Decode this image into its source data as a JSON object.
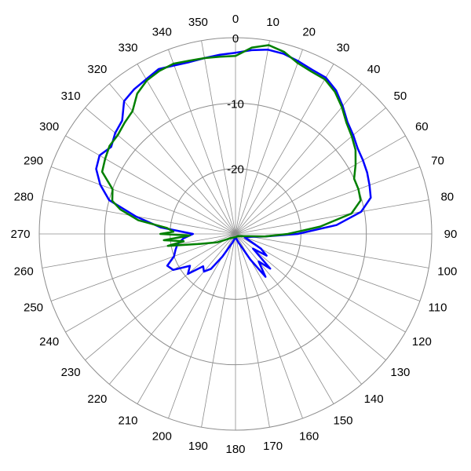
{
  "chart_data": {
    "type": "polar-line",
    "title": "",
    "angle_unit": "degrees",
    "angle_direction": "clockwise",
    "angle_zero": "top",
    "angle_ticks": [
      0,
      10,
      20,
      30,
      40,
      50,
      60,
      70,
      80,
      90,
      100,
      110,
      120,
      130,
      140,
      150,
      160,
      170,
      180,
      190,
      200,
      210,
      220,
      230,
      240,
      250,
      260,
      270,
      280,
      290,
      300,
      310,
      320,
      330,
      340,
      350
    ],
    "radial_range": [
      -30,
      0
    ],
    "radial_ticks": [
      0,
      -10,
      -20
    ],
    "grid": true,
    "legend": "none",
    "series": [
      {
        "color": "#0000ff",
        "points": [
          [
            0,
            -2.3
          ],
          [
            5,
            -1.8
          ],
          [
            10,
            -1.4
          ],
          [
            15,
            -1.5
          ],
          [
            20,
            -1.9
          ],
          [
            25,
            -2.3
          ],
          [
            30,
            -2.4
          ],
          [
            35,
            -3.2
          ],
          [
            40,
            -4.5
          ],
          [
            45,
            -5.8
          ],
          [
            50,
            -6.5
          ],
          [
            55,
            -7.2
          ],
          [
            60,
            -7.5
          ],
          [
            65,
            -7.8
          ],
          [
            70,
            -8.2
          ],
          [
            75,
            -8.6
          ],
          [
            80,
            -10.5
          ],
          [
            85,
            -14.5
          ],
          [
            90,
            -20.5
          ],
          [
            95,
            -25.5
          ],
          [
            100,
            -27.5
          ],
          [
            110,
            -28.5
          ],
          [
            120,
            -25.5
          ],
          [
            125,
            -24.2
          ],
          [
            130,
            -26.5
          ],
          [
            135,
            -22.5
          ],
          [
            140,
            -24.5
          ],
          [
            145,
            -22.0
          ],
          [
            150,
            -25.5
          ],
          [
            160,
            -28.5
          ],
          [
            180,
            -29.5
          ],
          [
            200,
            -28.5
          ],
          [
            210,
            -26.0
          ],
          [
            215,
            -23.5
          ],
          [
            220,
            -22.5
          ],
          [
            225,
            -23.0
          ],
          [
            230,
            -20.5
          ],
          [
            235,
            -21.5
          ],
          [
            240,
            -19.0
          ],
          [
            245,
            -18.5
          ],
          [
            250,
            -20.0
          ],
          [
            255,
            -20.5
          ],
          [
            260,
            -21.0
          ],
          [
            265,
            -22.0
          ],
          [
            270,
            -23.5
          ],
          [
            275,
            -18.5
          ],
          [
            280,
            -14.5
          ],
          [
            285,
            -10.0
          ],
          [
            290,
            -8.0
          ],
          [
            295,
            -6.5
          ],
          [
            300,
            -6.0
          ],
          [
            305,
            -6.8
          ],
          [
            310,
            -6.0
          ],
          [
            315,
            -5.5
          ],
          [
            320,
            -3.5
          ],
          [
            325,
            -3.0
          ],
          [
            330,
            -2.7
          ],
          [
            335,
            -2.2
          ],
          [
            340,
            -2.6
          ],
          [
            345,
            -2.8
          ],
          [
            350,
            -2.7
          ],
          [
            355,
            -2.5
          ]
        ]
      },
      {
        "color": "#008000",
        "points": [
          [
            0,
            -2.8
          ],
          [
            5,
            -1.4
          ],
          [
            10,
            -0.7
          ],
          [
            15,
            -1.2
          ],
          [
            20,
            -2.2
          ],
          [
            25,
            -2.6
          ],
          [
            30,
            -2.7
          ],
          [
            35,
            -3.5
          ],
          [
            40,
            -4.7
          ],
          [
            45,
            -6.0
          ],
          [
            50,
            -6.8
          ],
          [
            55,
            -7.6
          ],
          [
            60,
            -8.8
          ],
          [
            65,
            -10.0
          ],
          [
            70,
            -10.0
          ],
          [
            75,
            -10.2
          ],
          [
            80,
            -12.0
          ],
          [
            85,
            -17.0
          ],
          [
            90,
            -22.0
          ],
          [
            95,
            -25.5
          ],
          [
            100,
            -28.0
          ],
          [
            110,
            -29.0
          ],
          [
            130,
            -29.5
          ],
          [
            180,
            -29.5
          ],
          [
            230,
            -29.0
          ],
          [
            245,
            -27.0
          ],
          [
            255,
            -24.0
          ],
          [
            260,
            -19.5
          ],
          [
            262,
            -22.0
          ],
          [
            265,
            -19.0
          ],
          [
            268,
            -23.0
          ],
          [
            270,
            -18.5
          ],
          [
            272,
            -20.5
          ],
          [
            275,
            -19.5
          ],
          [
            278,
            -15.0
          ],
          [
            282,
            -12.0
          ],
          [
            285,
            -10.5
          ],
          [
            290,
            -10.0
          ],
          [
            295,
            -7.5
          ],
          [
            300,
            -7.0
          ],
          [
            305,
            -6.5
          ],
          [
            310,
            -6.5
          ],
          [
            315,
            -6.0
          ],
          [
            320,
            -5.5
          ],
          [
            325,
            -3.8
          ],
          [
            330,
            -2.9
          ],
          [
            335,
            -2.5
          ],
          [
            340,
            -2.3
          ],
          [
            345,
            -2.6
          ],
          [
            350,
            -2.7
          ],
          [
            355,
            -2.8
          ]
        ]
      }
    ]
  }
}
